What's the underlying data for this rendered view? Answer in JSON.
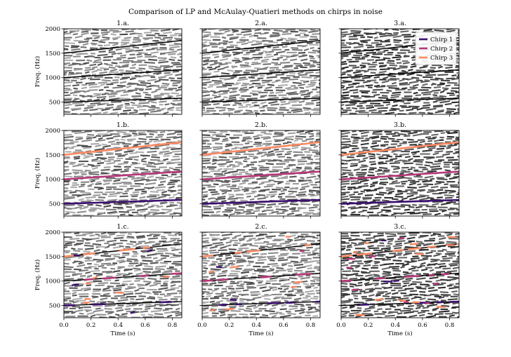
{
  "chart_data": {
    "type": "line",
    "title": "Comparison of LP and McAulay-Quatieri methods on chirps in noise",
    "xlabel": "Time (s)",
    "ylabel": "Freq. (Hz)",
    "xlim": [
      0.0,
      0.87
    ],
    "ylim": [
      250,
      2000
    ],
    "xticks": [
      0.0,
      0.2,
      0.4,
      0.6,
      0.8
    ],
    "xtick_labels": [
      "0.0",
      "0.2",
      "0.4",
      "0.6",
      "0.8"
    ],
    "yticks": [
      500,
      1000,
      1500,
      2000
    ],
    "ytick_labels": [
      "500",
      "1000",
      "1500",
      "2000"
    ],
    "colors": {
      "chirp1": "#3b0f70",
      "chirp2": "#b73779",
      "chirp3": "#fc8961",
      "noise": "#666666",
      "track": "#000000"
    },
    "legend": {
      "location": "top-right",
      "entries": [
        {
          "label": "Chirp 1",
          "color": "#3b0f70"
        },
        {
          "label": "Chirp 2",
          "color": "#b73779"
        },
        {
          "label": "Chirp 3",
          "color": "#fc8961"
        }
      ]
    },
    "series": [
      {
        "name": "Chirp 1",
        "x": [
          0.0,
          0.87
        ],
        "y": [
          500,
          580
        ]
      },
      {
        "name": "Chirp 2",
        "x": [
          0.0,
          0.87
        ],
        "y": [
          1000,
          1160
        ]
      },
      {
        "name": "Chirp 3",
        "x": [
          0.0,
          0.87
        ],
        "y": [
          1500,
          1760
        ]
      }
    ],
    "panels": [
      {
        "title": "1.a.",
        "row": 0,
        "col": 0,
        "noise_density": 1.0,
        "track_style": "black",
        "noise_shade": "light"
      },
      {
        "title": "2.a.",
        "row": 0,
        "col": 1,
        "noise_density": 1.0,
        "track_style": "black",
        "noise_shade": "light"
      },
      {
        "title": "3.a.",
        "row": 0,
        "col": 2,
        "noise_density": 1.0,
        "track_style": "black",
        "noise_shade": "dark"
      },
      {
        "title": "1.b.",
        "row": 1,
        "col": 0,
        "noise_density": 1.0,
        "track_style": "colored",
        "noise_shade": "light"
      },
      {
        "title": "2.b.",
        "row": 1,
        "col": 1,
        "noise_density": 1.0,
        "track_style": "colored",
        "noise_shade": "light"
      },
      {
        "title": "3.b.",
        "row": 1,
        "col": 2,
        "noise_density": 1.0,
        "track_style": "colored",
        "noise_shade": "dark"
      },
      {
        "title": "1.c.",
        "row": 2,
        "col": 0,
        "noise_density": 1.0,
        "track_style": "mixed",
        "noise_shade": "light"
      },
      {
        "title": "2.c.",
        "row": 2,
        "col": 1,
        "noise_density": 1.0,
        "track_style": "mixed",
        "noise_shade": "light"
      },
      {
        "title": "3.c.",
        "row": 2,
        "col": 2,
        "noise_density": 1.0,
        "track_style": "mixed",
        "noise_shade": "dark"
      }
    ]
  }
}
